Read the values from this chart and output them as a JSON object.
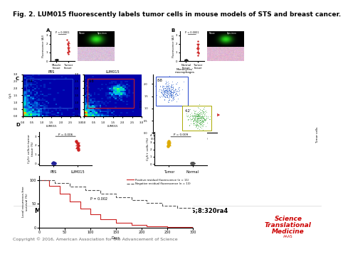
{
  "title": "Fig. 2. LUM015 fluorescently labels tumor cells in mouse models of STS and breast cancer.",
  "title_fontsize": 6.5,
  "author_line": "Melodi Javid Whitley et al., Sci Transl Med 2016;8:320ra4",
  "author_fontsize": 6.0,
  "copyright_line": "Copyright © 2016, American Association for the Advancement of Science",
  "copyright_fontsize": 4.5,
  "journal_line1": "Science",
  "journal_line2": "Translational",
  "journal_line3": "Medicine",
  "journal_sub": "AAAS",
  "journal_color": "#cc0000",
  "journal_fontsize": 6.5,
  "background_color": "#ffffff"
}
